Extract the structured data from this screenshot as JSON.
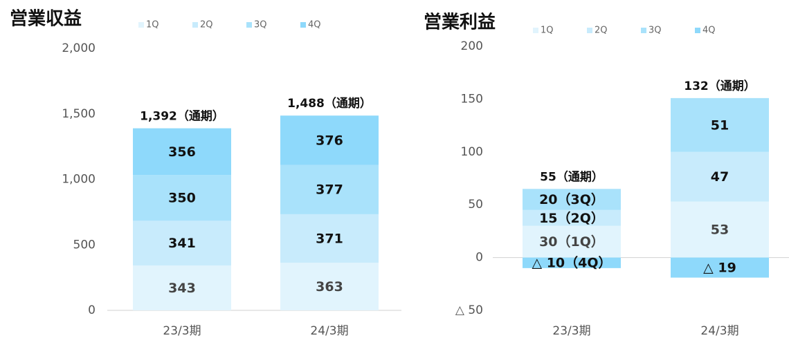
{
  "chart_data": [
    {
      "type": "bar",
      "stacked": true,
      "title": "営業収益",
      "categories": [
        "23/3期",
        "24/3期"
      ],
      "series": [
        {
          "name": "1Q",
          "color": "#e1f4fd",
          "values": [
            343,
            363
          ]
        },
        {
          "name": "2Q",
          "color": "#c8ebfc",
          "values": [
            341,
            371
          ]
        },
        {
          "name": "3Q",
          "color": "#a9e2fb",
          "values": [
            350,
            377
          ]
        },
        {
          "name": "4Q",
          "color": "#8ed9fb",
          "values": [
            356,
            376
          ]
        }
      ],
      "total_labels": [
        "1,392（通期）",
        "1,488（通期）"
      ],
      "ylim": [
        0,
        2000
      ],
      "yticks": [
        0,
        500,
        {
          "value": 1000,
          "label": "1,000"
        },
        {
          "value": 1500,
          "label": "1,500"
        },
        {
          "value": 2000,
          "label": "2,000"
        }
      ]
    },
    {
      "type": "bar",
      "stacked": true,
      "title": "営業利益",
      "categories": [
        "23/3期",
        "24/3期"
      ],
      "series": [
        {
          "name": "1Q",
          "color": "#e1f4fd",
          "values": [
            30,
            53
          ],
          "value_labels": [
            "30（1Q）",
            "53"
          ]
        },
        {
          "name": "2Q",
          "color": "#c8ebfc",
          "values": [
            15,
            47
          ],
          "value_labels": [
            "15（2Q）",
            "47"
          ]
        },
        {
          "name": "3Q",
          "color": "#a9e2fb",
          "values": [
            20,
            51
          ],
          "value_labels": [
            "20（3Q）",
            "51"
          ]
        },
        {
          "name": "4Q",
          "color": "#8ed9fb",
          "values": [
            -10,
            -19
          ],
          "value_labels": [
            "△ 10（4Q）",
            "△ 19"
          ]
        }
      ],
      "total_labels": [
        "55（通期）",
        "132（通期）"
      ],
      "ylim": [
        -50,
        200
      ],
      "yticks": [
        {
          "value": -50,
          "label": "△ 50"
        },
        0,
        50,
        100,
        150,
        200
      ]
    }
  ]
}
